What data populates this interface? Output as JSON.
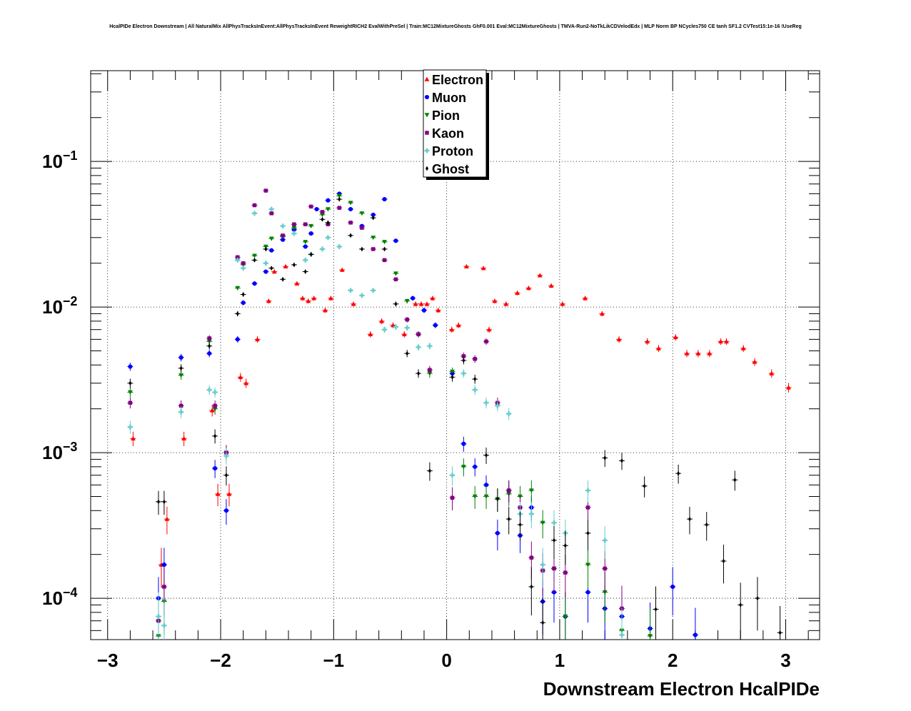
{
  "title": "HcalPIDe Electron Downstream | All NaturalMix AllPhysTracksInEvent:AllPhysTracksInEvent ReweightRICH2 EvalWithPreSel | Train:MC12MixtureGhosts GhF0.001 Eval:MC12MixtureGhosts | TMVA-Run2-NoTkLikCDVelodEdx | MLP Norm BP NCycles750 CE tanh SF1.2 CVTest15:1e-16 !UseReg",
  "chart_data": {
    "type": "scatter",
    "xlabel": "Downstream Electron HcalPIDe",
    "ylabel": "",
    "xlim": [
      -3.15,
      3.3
    ],
    "ylim": [
      5.2e-05,
      0.42
    ],
    "y_scale": "log",
    "grid": true,
    "legend_position": "top-center",
    "x_ticks": [
      {
        "v": -3,
        "label": "−3"
      },
      {
        "v": -2,
        "label": "−2"
      },
      {
        "v": -1,
        "label": "−1"
      },
      {
        "v": 0,
        "label": "0"
      },
      {
        "v": 1,
        "label": "1"
      },
      {
        "v": 2,
        "label": "2"
      },
      {
        "v": 3,
        "label": "3"
      }
    ],
    "y_ticks": [
      {
        "v": 0.1,
        "base": "10",
        "exp": "−1"
      },
      {
        "v": 0.01,
        "base": "10",
        "exp": "−2"
      },
      {
        "v": 0.001,
        "base": "10",
        "exp": "−3"
      },
      {
        "v": 0.0001,
        "base": "10",
        "exp": "−4"
      }
    ],
    "series": [
      {
        "name": "Electron",
        "color": "#ff0000",
        "marker": "triangle-up",
        "points": [
          [
            -2.8,
            0.00125
          ],
          [
            -2.55,
            0.00017
          ],
          [
            -2.5,
            0.00035
          ],
          [
            -2.35,
            0.00125
          ],
          [
            -2.1,
            0.00195
          ],
          [
            -2.05,
            0.00052
          ],
          [
            -1.95,
            0.00052
          ],
          [
            -1.85,
            0.0033
          ],
          [
            -1.8,
            0.003
          ],
          [
            -1.7,
            0.006
          ],
          [
            -1.6,
            0.011
          ],
          [
            -1.55,
            0.0175
          ],
          [
            -1.45,
            0.019
          ],
          [
            -1.35,
            0.0145
          ],
          [
            -1.3,
            0.0115
          ],
          [
            -1.25,
            0.011
          ],
          [
            -1.2,
            0.0115
          ],
          [
            -1.1,
            0.0095
          ],
          [
            -1.05,
            0.0115
          ],
          [
            -0.95,
            0.018
          ],
          [
            -0.85,
            0.0105
          ],
          [
            -0.7,
            0.0065
          ],
          [
            -0.6,
            0.008
          ],
          [
            -0.5,
            0.0075
          ],
          [
            -0.4,
            0.0065
          ],
          [
            -0.3,
            0.0105
          ],
          [
            -0.25,
            0.0105
          ],
          [
            -0.2,
            0.0105
          ],
          [
            -0.15,
            0.0115
          ],
          [
            -0.1,
            0.0095
          ],
          [
            0.02,
            0.007
          ],
          [
            0.08,
            0.0075
          ],
          [
            0.15,
            0.019
          ],
          [
            0.3,
            0.0185
          ],
          [
            0.35,
            0.007
          ],
          [
            0.4,
            0.011
          ],
          [
            0.5,
            0.0105
          ],
          [
            0.6,
            0.0125
          ],
          [
            0.7,
            0.0135
          ],
          [
            0.8,
            0.0165
          ],
          [
            0.9,
            0.014
          ],
          [
            1.0,
            0.0105
          ],
          [
            1.2,
            0.0115
          ],
          [
            1.35,
            0.009
          ],
          [
            1.5,
            0.006
          ],
          [
            1.75,
            0.0058
          ],
          [
            1.85,
            0.0052
          ],
          [
            2.0,
            0.0062
          ],
          [
            2.1,
            0.0048
          ],
          [
            2.2,
            0.0048
          ],
          [
            2.3,
            0.0048
          ],
          [
            2.4,
            0.0058
          ],
          [
            2.45,
            0.0058
          ],
          [
            2.6,
            0.0052
          ],
          [
            2.7,
            0.0042
          ],
          [
            2.85,
            0.0035
          ],
          [
            3.0,
            0.0028
          ]
        ]
      },
      {
        "name": "Muon",
        "color": "#0000ff",
        "marker": "circle",
        "points": [
          [
            -2.8,
            0.0039
          ],
          [
            -2.55,
            0.0001
          ],
          [
            -2.5,
            0.00017
          ],
          [
            -2.35,
            0.0045
          ],
          [
            -2.1,
            0.0048
          ],
          [
            -2.05,
            0.00078
          ],
          [
            -1.95,
            0.0004
          ],
          [
            -1.85,
            0.006
          ],
          [
            -1.8,
            0.0107
          ],
          [
            -1.7,
            0.0145
          ],
          [
            -1.6,
            0.0175
          ],
          [
            -1.55,
            0.0245
          ],
          [
            -1.45,
            0.029
          ],
          [
            -1.35,
            0.034
          ],
          [
            -1.25,
            0.026
          ],
          [
            -1.2,
            0.032
          ],
          [
            -1.15,
            0.047
          ],
          [
            -1.05,
            0.054
          ],
          [
            -0.95,
            0.06
          ],
          [
            -0.85,
            0.047
          ],
          [
            -0.75,
            0.036
          ],
          [
            -0.65,
            0.043
          ],
          [
            -0.55,
            0.055
          ],
          [
            -0.45,
            0.0285
          ],
          [
            -0.3,
            0.0115
          ],
          [
            -0.2,
            0.0095
          ],
          [
            -0.1,
            0.0075
          ],
          [
            0.05,
            0.0035
          ],
          [
            0.15,
            0.00115
          ],
          [
            0.25,
            0.0008
          ],
          [
            0.35,
            0.0006
          ],
          [
            0.45,
            0.00028
          ],
          [
            0.55,
            0.00055
          ],
          [
            0.65,
            0.00027
          ],
          [
            0.75,
            0.00042
          ],
          [
            0.85,
            9.5e-05
          ],
          [
            0.95,
            0.00011
          ],
          [
            1.05,
            7.5e-05
          ],
          [
            1.25,
            0.00011
          ],
          [
            1.4,
            8.5e-05
          ],
          [
            1.55,
            7.5e-05
          ],
          [
            1.8,
            6.2e-05
          ],
          [
            2.0,
            0.00012
          ],
          [
            2.2,
            5.6e-05
          ]
        ]
      },
      {
        "name": "Pion",
        "color": "#008000",
        "marker": "triangle-down",
        "points": [
          [
            -2.8,
            0.0026
          ],
          [
            -2.55,
            5.5e-05
          ],
          [
            -2.5,
            9.5e-05
          ],
          [
            -2.35,
            0.0034
          ],
          [
            -2.1,
            0.0058
          ],
          [
            -2.05,
            0.002
          ],
          [
            -1.95,
            0.001
          ],
          [
            -1.85,
            0.0135
          ],
          [
            -1.8,
            0.0195
          ],
          [
            -1.7,
            0.0225
          ],
          [
            -1.6,
            0.026
          ],
          [
            -1.55,
            0.0295
          ],
          [
            -1.45,
            0.0305
          ],
          [
            -1.35,
            0.035
          ],
          [
            -1.25,
            0.028
          ],
          [
            -1.2,
            0.036
          ],
          [
            -1.1,
            0.043
          ],
          [
            -1.05,
            0.047
          ],
          [
            -0.95,
            0.058
          ],
          [
            -0.85,
            0.052
          ],
          [
            -0.75,
            0.044
          ],
          [
            -0.65,
            0.03
          ],
          [
            -0.55,
            0.028
          ],
          [
            -0.45,
            0.017
          ],
          [
            -0.35,
            0.011
          ],
          [
            -0.25,
            0.0065
          ],
          [
            -0.15,
            0.0035
          ],
          [
            0.05,
            0.0036
          ],
          [
            0.15,
            0.0008
          ],
          [
            0.25,
            0.0005
          ],
          [
            0.35,
            0.0005
          ],
          [
            0.45,
            0.00048
          ],
          [
            0.55,
            0.00052
          ],
          [
            0.65,
            0.0005
          ],
          [
            0.75,
            0.00055
          ],
          [
            0.85,
            0.00033
          ],
          [
            0.95,
            0.00016
          ],
          [
            1.05,
            7.5e-05
          ],
          [
            1.25,
            0.00017
          ],
          [
            1.4,
            0.00011
          ],
          [
            1.55,
            6e-05
          ],
          [
            1.8,
            5.5e-05
          ]
        ]
      },
      {
        "name": "Kaon",
        "color": "#800080",
        "marker": "square",
        "points": [
          [
            -2.8,
            0.0022
          ],
          [
            -2.55,
            7e-05
          ],
          [
            -2.5,
            0.00012
          ],
          [
            -2.35,
            0.0021
          ],
          [
            -2.1,
            0.0061
          ],
          [
            -2.05,
            0.0021
          ],
          [
            -1.95,
            0.001
          ],
          [
            -1.85,
            0.022
          ],
          [
            -1.8,
            0.02
          ],
          [
            -1.7,
            0.05
          ],
          [
            -1.6,
            0.063
          ],
          [
            -1.55,
            0.044
          ],
          [
            -1.45,
            0.031
          ],
          [
            -1.35,
            0.037
          ],
          [
            -1.25,
            0.037
          ],
          [
            -1.2,
            0.049
          ],
          [
            -1.1,
            0.045
          ],
          [
            -1.05,
            0.037
          ],
          [
            -0.95,
            0.048
          ],
          [
            -0.85,
            0.038
          ],
          [
            -0.75,
            0.035
          ],
          [
            -0.65,
            0.025
          ],
          [
            -0.55,
            0.021
          ],
          [
            -0.45,
            0.0155
          ],
          [
            -0.35,
            0.0082
          ],
          [
            -0.25,
            0.0065
          ],
          [
            -0.15,
            0.0037
          ],
          [
            0.05,
            0.00049
          ],
          [
            0.15,
            0.0046
          ],
          [
            0.25,
            0.0044
          ],
          [
            0.35,
            0.0058
          ],
          [
            0.45,
            0.0022
          ],
          [
            0.55,
            0.00055
          ],
          [
            0.65,
            0.00042
          ],
          [
            0.75,
            0.00019
          ],
          [
            0.85,
            0.000155
          ],
          [
            0.95,
            0.00016
          ],
          [
            1.05,
            0.00015
          ],
          [
            1.25,
            0.00042
          ],
          [
            1.4,
            0.00016
          ],
          [
            1.55,
            8.5e-05
          ]
        ]
      },
      {
        "name": "Proton",
        "color": "#66cccc",
        "marker": "cross",
        "points": [
          [
            -2.8,
            0.0015
          ],
          [
            -2.55,
            7.5e-05
          ],
          [
            -2.5,
            6.5e-05
          ],
          [
            -2.35,
            0.0019
          ],
          [
            -2.1,
            0.0027
          ],
          [
            -2.05,
            0.0026
          ],
          [
            -1.95,
            0.00095
          ],
          [
            -1.85,
            0.021
          ],
          [
            -1.8,
            0.0185
          ],
          [
            -1.7,
            0.044
          ],
          [
            -1.6,
            0.02
          ],
          [
            -1.55,
            0.047
          ],
          [
            -1.45,
            0.036
          ],
          [
            -1.35,
            0.032
          ],
          [
            -1.25,
            0.021
          ],
          [
            -1.2,
            0.023
          ],
          [
            -1.1,
            0.025
          ],
          [
            -1.05,
            0.03
          ],
          [
            -0.95,
            0.026
          ],
          [
            -0.85,
            0.013
          ],
          [
            -0.75,
            0.012
          ],
          [
            -0.65,
            0.013
          ],
          [
            -0.55,
            0.007
          ],
          [
            -0.45,
            0.0073
          ],
          [
            -0.35,
            0.0072
          ],
          [
            -0.25,
            0.0053
          ],
          [
            -0.15,
            0.0054
          ],
          [
            0.05,
            0.0007
          ],
          [
            0.15,
            0.0035
          ],
          [
            0.25,
            0.0027
          ],
          [
            0.35,
            0.0022
          ],
          [
            0.45,
            0.0021
          ],
          [
            0.55,
            0.00185
          ],
          [
            0.65,
            0.00038
          ],
          [
            0.75,
            0.00038
          ],
          [
            0.85,
            0.00017
          ],
          [
            0.95,
            0.00033
          ],
          [
            1.05,
            0.00028
          ],
          [
            1.25,
            0.00055
          ],
          [
            1.4,
            0.00025
          ],
          [
            1.55,
            5.6e-05
          ]
        ]
      },
      {
        "name": "Ghost",
        "color": "#000000",
        "marker": "diamond",
        "points": [
          [
            -2.8,
            0.003
          ],
          [
            -2.55,
            0.00046
          ],
          [
            -2.5,
            0.00046
          ],
          [
            -2.35,
            0.0038
          ],
          [
            -2.1,
            0.0054
          ],
          [
            -2.05,
            0.0013
          ],
          [
            -1.95,
            0.0007
          ],
          [
            -1.85,
            0.009
          ],
          [
            -1.8,
            0.0122
          ],
          [
            -1.7,
            0.021
          ],
          [
            -1.6,
            0.025
          ],
          [
            -1.55,
            0.0185
          ],
          [
            -1.45,
            0.0155
          ],
          [
            -1.35,
            0.0195
          ],
          [
            -1.25,
            0.0175
          ],
          [
            -1.2,
            0.023
          ],
          [
            -1.1,
            0.04
          ],
          [
            -1.05,
            0.038
          ],
          [
            -0.95,
            0.055
          ],
          [
            -0.85,
            0.031
          ],
          [
            -0.75,
            0.025
          ],
          [
            -0.65,
            0.041
          ],
          [
            -0.55,
            0.025
          ],
          [
            -0.45,
            0.0105
          ],
          [
            -0.35,
            0.0048
          ],
          [
            -0.25,
            0.0035
          ],
          [
            -0.15,
            0.00075
          ],
          [
            0.05,
            0.0033
          ],
          [
            0.15,
            0.0043
          ],
          [
            0.25,
            0.0032
          ],
          [
            0.35,
            0.00096
          ],
          [
            0.45,
            0.00048
          ],
          [
            0.55,
            0.00035
          ],
          [
            0.65,
            0.00032
          ],
          [
            0.75,
            0.00012
          ],
          [
            0.85,
            6.8e-05
          ],
          [
            0.95,
            0.00025
          ],
          [
            1.05,
            0.00023
          ],
          [
            1.25,
            0.00028
          ],
          [
            1.4,
            0.00092
          ],
          [
            1.55,
            0.00088
          ],
          [
            1.75,
            0.00059
          ],
          [
            1.85,
            8.4e-05
          ],
          [
            2.05,
            0.00072
          ],
          [
            2.15,
            0.00035
          ],
          [
            2.3,
            0.00032
          ],
          [
            2.45,
            0.00018
          ],
          [
            2.55,
            0.00065
          ],
          [
            2.6,
            9e-05
          ],
          [
            2.75,
            0.0001
          ],
          [
            2.95,
            5.8e-05
          ]
        ]
      }
    ]
  }
}
